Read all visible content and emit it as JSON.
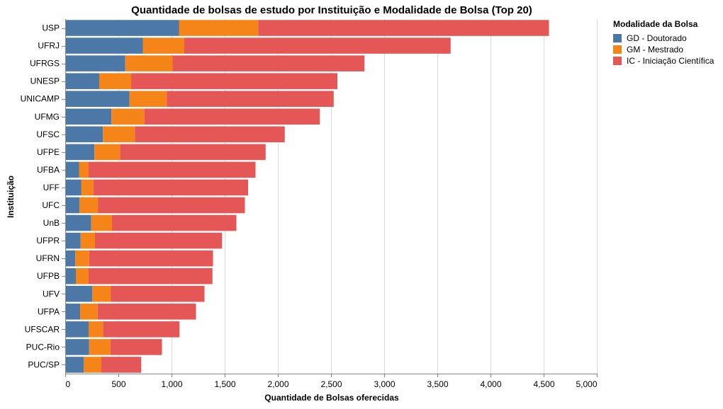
{
  "chart_data": {
    "type": "bar",
    "orientation": "horizontal",
    "stacked": true,
    "title": "Quantidade de bolsas de estudo por Instituição e Modalidade de Bolsa (Top 20)",
    "xlabel": "Quantidade de Bolsas oferecidas",
    "ylabel": "Instituição",
    "xlim": [
      0,
      5000
    ],
    "xticks": [
      0,
      500,
      1000,
      1500,
      2000,
      2500,
      3000,
      3500,
      4000,
      4500,
      5000
    ],
    "xtick_labels": [
      "0",
      "500",
      "1,000",
      "1,500",
      "2,000",
      "2,500",
      "3,000",
      "3,500",
      "4,000",
      "4,500",
      "5,000"
    ],
    "grid": true,
    "legend_title": "Modalidade da Bolsa",
    "legend_position": "top-right",
    "categories": [
      "USP",
      "UFRJ",
      "UFRGS",
      "UNESP",
      "UNICAMP",
      "UFMG",
      "UFSC",
      "UFPE",
      "UFBA",
      "UFF",
      "UFC",
      "UnB",
      "UFPR",
      "UFRN",
      "UFPB",
      "UFV",
      "UFPA",
      "UFSCAR",
      "PUC-Rio",
      "PUC/SP"
    ],
    "series": [
      {
        "name": "GD - Doutorado",
        "color": "#4c78a8",
        "values": [
          1070,
          730,
          565,
          320,
          605,
          435,
          355,
          275,
          130,
          150,
          135,
          245,
          145,
          95,
          100,
          255,
          140,
          220,
          225,
          175
        ]
      },
      {
        "name": "GM - Mestrado",
        "color": "#f58518",
        "values": [
          745,
          390,
          445,
          300,
          350,
          310,
          300,
          240,
          90,
          115,
          175,
          195,
          135,
          130,
          120,
          175,
          165,
          135,
          200,
          165
        ]
      },
      {
        "name": "IC - Iniciação Científica",
        "color": "#e45756",
        "values": [
          2735,
          2505,
          1805,
          1940,
          1570,
          1650,
          1410,
          1370,
          1570,
          1455,
          1380,
          1170,
          1195,
          1165,
          1165,
          880,
          925,
          720,
          485,
          375
        ]
      }
    ]
  }
}
